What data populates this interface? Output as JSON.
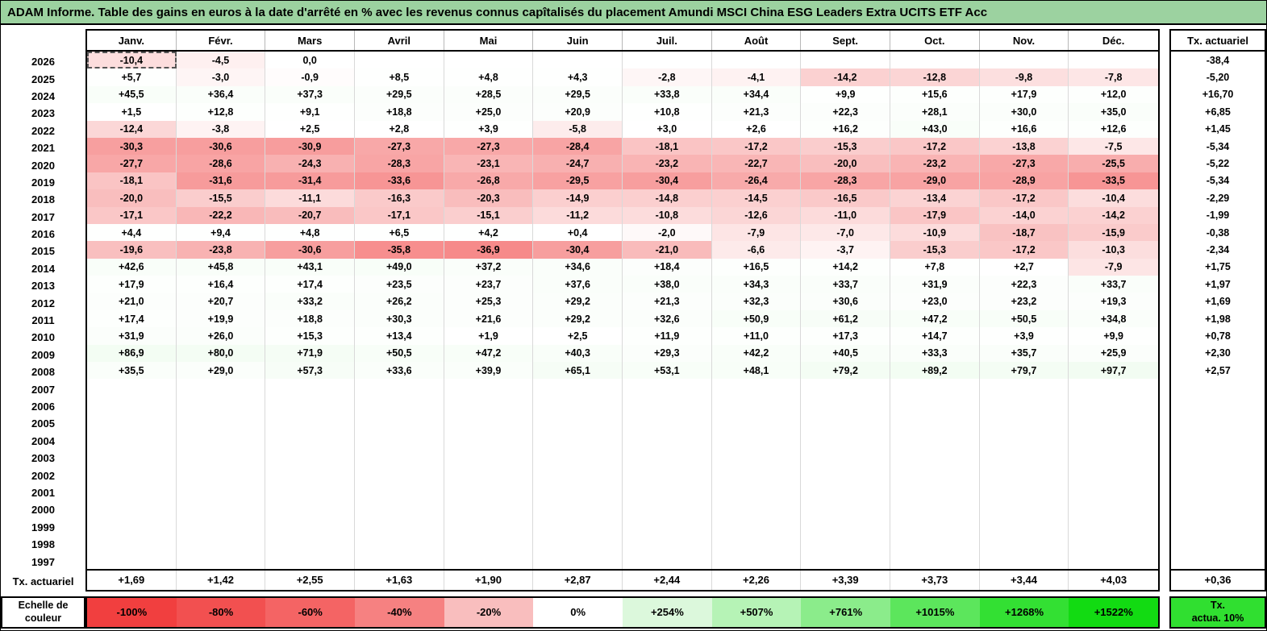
{
  "title": "ADAM Informe. Table des gains en euros à la date d'arrêté en % avec les revenus connus capîtalisés du placement Amundi MSCI China ESG Leaders Extra UCITS ETF Acc",
  "theme": {
    "title_bg": "#9CD2A0",
    "border_color": "#000000"
  },
  "table": {
    "months": [
      "Janv.",
      "Févr.",
      "Mars",
      "Avril",
      "Mai",
      "Juin",
      "Juil.",
      "Août",
      "Sept.",
      "Oct.",
      "Nov.",
      "Déc."
    ],
    "tx_col_header": "Tx. actuariel",
    "tx_row_label": "Tx. actuariel",
    "rows": [
      {
        "year": "2026",
        "values": [
          "-10,4",
          "-4,5",
          "0,0",
          "",
          "",
          "",
          "",
          "",
          "",
          "",
          "",
          ""
        ],
        "tx": "-38,4"
      },
      {
        "year": "2025",
        "values": [
          "+5,7",
          "-3,0",
          "-0,9",
          "+8,5",
          "+4,8",
          "+4,3",
          "-2,8",
          "-4,1",
          "-14,2",
          "-12,8",
          "-9,8",
          "-7,8"
        ],
        "tx": "-5,20"
      },
      {
        "year": "2024",
        "values": [
          "+45,5",
          "+36,4",
          "+37,3",
          "+29,5",
          "+28,5",
          "+29,5",
          "+33,8",
          "+34,4",
          "+9,9",
          "+15,6",
          "+17,9",
          "+12,0"
        ],
        "tx": "+16,70"
      },
      {
        "year": "2023",
        "values": [
          "+1,5",
          "+12,8",
          "+9,1",
          "+18,8",
          "+25,0",
          "+20,9",
          "+10,8",
          "+21,3",
          "+22,3",
          "+28,1",
          "+30,0",
          "+35,0"
        ],
        "tx": "+6,85"
      },
      {
        "year": "2022",
        "values": [
          "-12,4",
          "-3,8",
          "+2,5",
          "+2,8",
          "+3,9",
          "-5,8",
          "+3,0",
          "+2,6",
          "+16,2",
          "+43,0",
          "+16,6",
          "+12,6"
        ],
        "tx": "+1,45"
      },
      {
        "year": "2021",
        "values": [
          "-30,3",
          "-30,6",
          "-30,9",
          "-27,3",
          "-27,3",
          "-28,4",
          "-18,1",
          "-17,2",
          "-15,3",
          "-17,2",
          "-13,8",
          "-7,5"
        ],
        "tx": "-5,34"
      },
      {
        "year": "2020",
        "values": [
          "-27,7",
          "-28,6",
          "-24,3",
          "-28,3",
          "-23,1",
          "-24,7",
          "-23,2",
          "-22,7",
          "-20,0",
          "-23,2",
          "-27,3",
          "-25,5"
        ],
        "tx": "-5,22"
      },
      {
        "year": "2019",
        "values": [
          "-18,1",
          "-31,6",
          "-31,4",
          "-33,6",
          "-26,8",
          "-29,5",
          "-30,4",
          "-26,4",
          "-28,3",
          "-29,0",
          "-28,9",
          "-33,5"
        ],
        "tx": "-5,34"
      },
      {
        "year": "2018",
        "values": [
          "-20,0",
          "-15,5",
          "-11,1",
          "-16,3",
          "-20,3",
          "-14,9",
          "-14,8",
          "-14,5",
          "-16,5",
          "-13,4",
          "-17,2",
          "-10,4"
        ],
        "tx": "-2,29"
      },
      {
        "year": "2017",
        "values": [
          "-17,1",
          "-22,2",
          "-20,7",
          "-17,1",
          "-15,1",
          "-11,2",
          "-10,8",
          "-12,6",
          "-11,0",
          "-17,9",
          "-14,0",
          "-14,2"
        ],
        "tx": "-1,99"
      },
      {
        "year": "2016",
        "values": [
          "+4,4",
          "+9,4",
          "+4,8",
          "+6,5",
          "+4,2",
          "+0,4",
          "-2,0",
          "-7,9",
          "-7,0",
          "-10,9",
          "-18,7",
          "-15,9"
        ],
        "tx": "-0,38"
      },
      {
        "year": "2015",
        "values": [
          "-19,6",
          "-23,8",
          "-30,6",
          "-35,8",
          "-36,9",
          "-30,4",
          "-21,0",
          "-6,6",
          "-3,7",
          "-15,3",
          "-17,2",
          "-10,3"
        ],
        "tx": "-2,34"
      },
      {
        "year": "2014",
        "values": [
          "+42,6",
          "+45,8",
          "+43,1",
          "+49,0",
          "+37,2",
          "+34,6",
          "+18,4",
          "+16,5",
          "+14,2",
          "+7,8",
          "+2,7",
          "-7,9"
        ],
        "tx": "+1,75"
      },
      {
        "year": "2013",
        "values": [
          "+17,9",
          "+16,4",
          "+17,4",
          "+23,5",
          "+23,7",
          "+37,6",
          "+38,0",
          "+34,3",
          "+33,7",
          "+31,9",
          "+22,3",
          "+33,7"
        ],
        "tx": "+1,97"
      },
      {
        "year": "2012",
        "values": [
          "+21,0",
          "+20,7",
          "+33,2",
          "+26,2",
          "+25,3",
          "+29,2",
          "+21,3",
          "+32,3",
          "+30,6",
          "+23,0",
          "+23,2",
          "+19,3"
        ],
        "tx": "+1,69"
      },
      {
        "year": "2011",
        "values": [
          "+17,4",
          "+19,9",
          "+18,8",
          "+30,3",
          "+21,6",
          "+29,2",
          "+32,6",
          "+50,9",
          "+61,2",
          "+47,2",
          "+50,5",
          "+34,8"
        ],
        "tx": "+1,98"
      },
      {
        "year": "2010",
        "values": [
          "+31,9",
          "+26,0",
          "+15,3",
          "+13,4",
          "+1,9",
          "+2,5",
          "+11,9",
          "+11,0",
          "+17,3",
          "+14,7",
          "+3,9",
          "+9,9"
        ],
        "tx": "+0,78"
      },
      {
        "year": "2009",
        "values": [
          "+86,9",
          "+80,0",
          "+71,9",
          "+50,5",
          "+47,2",
          "+40,3",
          "+29,3",
          "+42,2",
          "+40,5",
          "+33,3",
          "+35,7",
          "+25,9"
        ],
        "tx": "+2,30"
      },
      {
        "year": "2008",
        "values": [
          "+35,5",
          "+29,0",
          "+57,3",
          "+33,6",
          "+39,9",
          "+65,1",
          "+53,1",
          "+48,1",
          "+79,2",
          "+89,2",
          "+79,7",
          "+97,7"
        ],
        "tx": "+2,57"
      },
      {
        "year": "2007",
        "values": [],
        "tx": ""
      },
      {
        "year": "2006",
        "values": [],
        "tx": ""
      },
      {
        "year": "2005",
        "values": [],
        "tx": ""
      },
      {
        "year": "2004",
        "values": [],
        "tx": ""
      },
      {
        "year": "2003",
        "values": [],
        "tx": ""
      },
      {
        "year": "2002",
        "values": [],
        "tx": ""
      },
      {
        "year": "2001",
        "values": [],
        "tx": ""
      },
      {
        "year": "2000",
        "values": [],
        "tx": ""
      },
      {
        "year": "1999",
        "values": [],
        "tx": ""
      },
      {
        "year": "1998",
        "values": [],
        "tx": ""
      },
      {
        "year": "1997",
        "values": [],
        "tx": ""
      }
    ],
    "tx_bottom_values": [
      "+1,69",
      "+1,42",
      "+2,55",
      "+1,63",
      "+1,90",
      "+2,87",
      "+2,44",
      "+2,26",
      "+3,39",
      "+3,73",
      "+3,44",
      "+4,03"
    ],
    "tx_bottom_right": "+0,36"
  },
  "selected_cell": {
    "row_index": 0,
    "col_index": 0
  },
  "color_scale": {
    "stops": [
      {
        "v": -100,
        "c": "#F13F3F"
      },
      {
        "v": -80,
        "c": "#F25050"
      },
      {
        "v": -60,
        "c": "#F46464"
      },
      {
        "v": -40,
        "c": "#F68181"
      },
      {
        "v": -20,
        "c": "#F9BEBE"
      },
      {
        "v": 0,
        "c": "#FFFFFF"
      },
      {
        "v": 254,
        "c": "#DCF8DC"
      },
      {
        "v": 507,
        "c": "#B6F3B6"
      },
      {
        "v": 761,
        "c": "#8BEC8B"
      },
      {
        "v": 1015,
        "c": "#5CE65C"
      },
      {
        "v": 1268,
        "c": "#33E033"
      },
      {
        "v": 1522,
        "c": "#12DB12"
      }
    ]
  },
  "legend": {
    "label_line1": "Echelle de",
    "label_line2": "couleur",
    "stops": [
      {
        "label": "-100%",
        "value": -100
      },
      {
        "label": "-80%",
        "value": -80
      },
      {
        "label": "-60%",
        "value": -60
      },
      {
        "label": "-40%",
        "value": -40
      },
      {
        "label": "-20%",
        "value": -20
      },
      {
        "label": "0%",
        "value": 0
      },
      {
        "label": "+254%",
        "value": 254
      },
      {
        "label": "+507%",
        "value": 507
      },
      {
        "label": "+761%",
        "value": 761
      },
      {
        "label": "+1015%",
        "value": 1015
      },
      {
        "label": "+1268%",
        "value": 1268
      },
      {
        "label": "+1522%",
        "value": 1522
      }
    ],
    "right_line1": "Tx.",
    "right_line2": "actua. 10%",
    "right_bg": "#30DF30"
  }
}
